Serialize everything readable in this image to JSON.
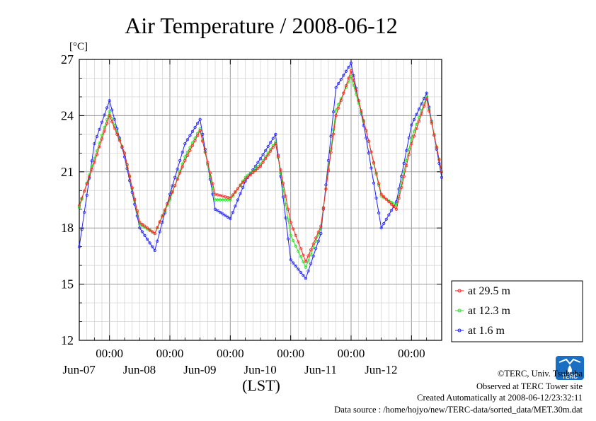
{
  "chart_data": {
    "type": "line",
    "title": "Air Temperature / 2008-06-12",
    "unit": "[°C]",
    "xlabel": "(LST)",
    "ylim": [
      12,
      27
    ],
    "yticks": [
      "12",
      "15",
      "18",
      "21",
      "24",
      "27"
    ],
    "xticks": [
      {
        "time": "00:00",
        "date": "Jun-07"
      },
      {
        "time": "00:00",
        "date": "Jun-08"
      },
      {
        "time": "00:00",
        "date": "Jun-09"
      },
      {
        "time": "00:00",
        "date": "Jun-10"
      },
      {
        "time": "00:00",
        "date": "Jun-11"
      },
      {
        "time": "00:00",
        "date": "Jun-12"
      }
    ],
    "x_hours": [
      0,
      6,
      12,
      18,
      24,
      30,
      36,
      42,
      48,
      54,
      60,
      66,
      72,
      78,
      84,
      90,
      96,
      102,
      108,
      114,
      120,
      126,
      132,
      138,
      144
    ],
    "x_unit": "hours from 2008-06-06 12:00 LST",
    "xlim": [
      0,
      144
    ],
    "grid": true,
    "legend_position": "right",
    "series": [
      {
        "name": "at 29.5 m",
        "color": "#ff2020",
        "values": [
          19.2,
          21.5,
          24.0,
          22.0,
          18.3,
          17.7,
          19.6,
          21.6,
          23.2,
          19.8,
          19.6,
          20.6,
          21.3,
          22.5,
          18.3,
          16.2,
          18.1,
          24.0,
          26.4,
          23.2,
          19.8,
          19.0,
          22.5,
          24.9,
          21.0
        ]
      },
      {
        "name": "at 12.3 m",
        "color": "#20e020",
        "values": [
          19.1,
          21.7,
          24.2,
          22.0,
          18.2,
          17.7,
          19.5,
          21.8,
          23.3,
          19.5,
          19.5,
          20.7,
          21.4,
          22.6,
          17.6,
          15.9,
          18.0,
          24.3,
          26.1,
          23.2,
          19.7,
          19.2,
          22.8,
          25.0,
          21.0
        ]
      },
      {
        "name": "at 1.6 m",
        "color": "#2020ff",
        "values": [
          17.0,
          22.5,
          24.8,
          21.8,
          18.0,
          16.8,
          19.8,
          22.5,
          23.8,
          19.0,
          18.5,
          20.5,
          21.7,
          23.0,
          16.3,
          15.3,
          17.7,
          25.5,
          26.8,
          22.8,
          18.0,
          19.4,
          23.5,
          25.2,
          20.7
        ]
      }
    ]
  },
  "credits": {
    "copyright": "©TERC, Univ. Tsukuba",
    "observed": "Observed at TERC Tower site",
    "created": "Created Automatically at 2008-06-12/23:32:11",
    "source": "Data source : /home/hojyo/new/TERC-data/sorted_data/MET.30m.dat"
  },
  "logo": {
    "text": "TERC",
    "color": "#1a6fc2"
  }
}
